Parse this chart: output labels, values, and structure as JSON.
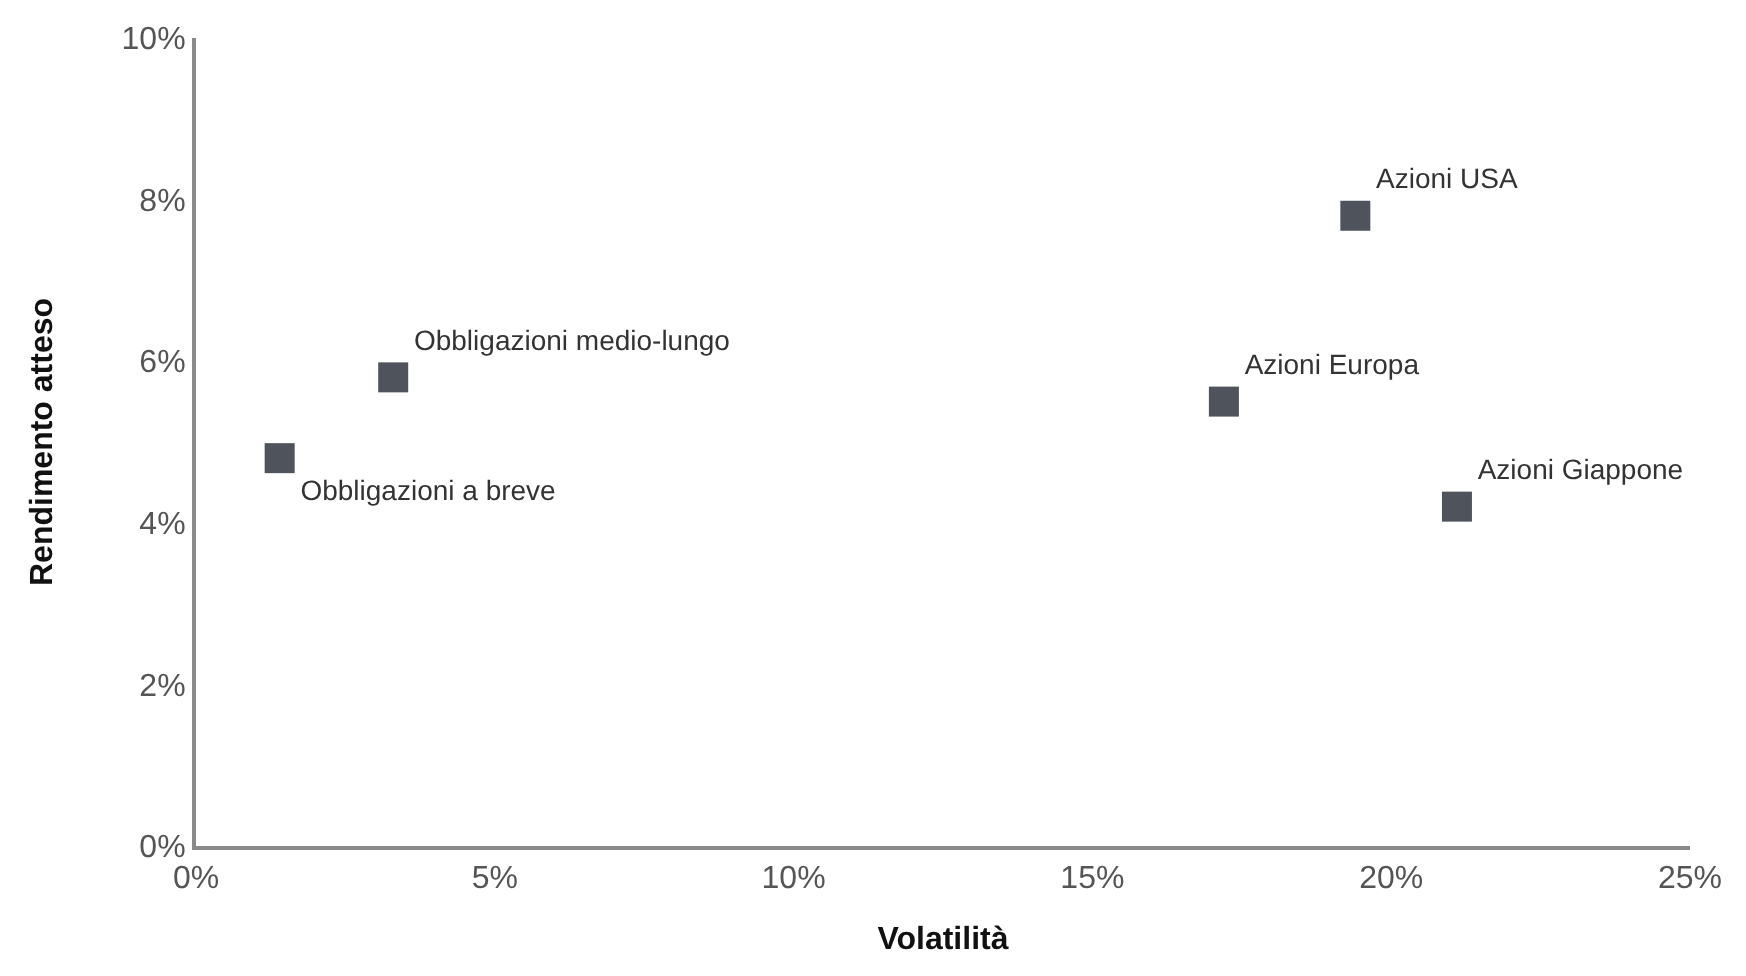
{
  "chart_data": {
    "type": "scatter",
    "xlabel": "Volatilità",
    "ylabel": "Rendimento atteso",
    "marker": "square",
    "xlim": [
      0,
      25
    ],
    "xticks": [
      {
        "value": 0,
        "label": "0%"
      },
      {
        "value": 5,
        "label": "5%"
      },
      {
        "value": 10,
        "label": "10%"
      },
      {
        "value": 15,
        "label": "15%"
      },
      {
        "value": 20,
        "label": "20%"
      },
      {
        "value": 25,
        "label": "25%"
      }
    ],
    "ylim": [
      0,
      10
    ],
    "yticks": [
      {
        "value": 0,
        "label": "0%"
      },
      {
        "value": 2,
        "label": "2%"
      },
      {
        "value": 4,
        "label": "4%"
      },
      {
        "value": 6,
        "label": "6%"
      },
      {
        "value": 8,
        "label": "8%"
      },
      {
        "value": 10,
        "label": "10%"
      }
    ],
    "series": [
      {
        "name": "Obbligazioni a breve",
        "color": "#4f535b",
        "x": [
          1.4
        ],
        "values": [
          4.8
        ]
      },
      {
        "name": "Obbligazioni medio-lungo",
        "color": "#4f535b",
        "x": [
          3.3
        ],
        "values": [
          5.8
        ]
      },
      {
        "name": "Azioni Europa",
        "color": "#4f535b",
        "x": [
          17.2
        ],
        "values": [
          5.5
        ]
      },
      {
        "name": "Azioni USA",
        "color": "#4f535b",
        "x": [
          19.4
        ],
        "values": [
          7.8
        ]
      },
      {
        "name": "Azioni Giappone",
        "color": "#4f535b",
        "x": [
          21.1
        ],
        "values": [
          4.2
        ]
      }
    ]
  }
}
